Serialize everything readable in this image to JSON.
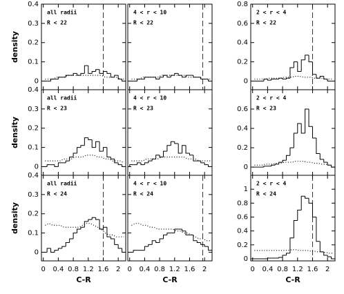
{
  "chart_data": [
    {
      "type": "histogram",
      "lines": [
        "all radii",
        "R < 22"
      ],
      "ylabel": "density",
      "xtick_labels": false,
      "bins": [
        0,
        0.1,
        0.2,
        0.3,
        0.4,
        0.5,
        0.6,
        0.7,
        0.8,
        0.9,
        1,
        1.1,
        1.2,
        1.3,
        1.4,
        1.5,
        1.6,
        1.7,
        1.8,
        1.9,
        2,
        2.1,
        2.2
      ],
      "values": [
        0,
        0,
        0.01,
        0.01,
        0.02,
        0.02,
        0.03,
        0.03,
        0.04,
        0.03,
        0.04,
        0.08,
        0.04,
        0.05,
        0.06,
        0.04,
        0.05,
        0.04,
        0.02,
        0.03,
        0.01,
        0
      ],
      "reference": [
        0.01,
        0.01,
        0.01,
        0.02,
        0.02,
        0.02,
        0.03,
        0.03,
        0.03,
        0.03,
        0.03,
        0.03,
        0.03,
        0.03,
        0.03,
        0.03,
        0.02,
        0.02,
        0.02,
        0.02,
        0.01,
        0.01
      ],
      "xlim": [
        -0.05,
        2.2
      ],
      "ylim": [
        -0.045,
        0.4
      ],
      "xticks": [
        0,
        0.4,
        0.8,
        1.2,
        1.6,
        2
      ],
      "yticks": [
        0,
        0.1,
        0.2,
        0.3,
        0.4
      ],
      "vline": 1.6
    },
    {
      "type": "histogram",
      "lines": [
        "4 < r < 10",
        "R < 22"
      ],
      "xtick_labels": false,
      "ytick_labels": false,
      "bins": [
        0,
        0.1,
        0.2,
        0.3,
        0.4,
        0.5,
        0.6,
        0.7,
        0.8,
        0.9,
        1,
        1.1,
        1.2,
        1.3,
        1.4,
        1.5,
        1.6,
        1.7,
        1.8,
        1.9,
        2,
        2.1,
        2.2
      ],
      "values": [
        0,
        0,
        0.01,
        0.01,
        0.02,
        0.02,
        0.02,
        0.01,
        0.02,
        0.03,
        0.02,
        0.03,
        0.04,
        0.03,
        0.02,
        0.03,
        0.03,
        0.02,
        0.02,
        0.01,
        0.01,
        0
      ],
      "reference": [
        0.01,
        0.01,
        0.01,
        0.02,
        0.02,
        0.02,
        0.02,
        0.02,
        0.03,
        0.03,
        0.03,
        0.03,
        0.03,
        0.03,
        0.03,
        0.02,
        0.02,
        0.02,
        0.02,
        0.01,
        0.01,
        0.01
      ],
      "xlim": [
        -0.05,
        2.2
      ],
      "ylim": [
        -0.045,
        0.4
      ],
      "xticks": [
        0,
        0.4,
        0.8,
        1.2,
        1.6,
        2
      ],
      "yticks": [
        0,
        0.1,
        0.2,
        0.3,
        0.4
      ],
      "vline": 1.95
    },
    {
      "type": "histogram",
      "lines": [
        "2 < r < 4",
        "R < 22"
      ],
      "xtick_labels": false,
      "bins": [
        0,
        0.1,
        0.2,
        0.3,
        0.4,
        0.5,
        0.6,
        0.7,
        0.8,
        0.9,
        1,
        1.1,
        1.2,
        1.3,
        1.4,
        1.5,
        1.6,
        1.7,
        1.8,
        1.9,
        2,
        2.1,
        2.2
      ],
      "values": [
        0,
        0,
        0,
        0.02,
        0.01,
        0.02,
        0.02,
        0.03,
        0.02,
        0.03,
        0.14,
        0.2,
        0.1,
        0.22,
        0.27,
        0.2,
        0.07,
        0.03,
        0.05,
        0.02,
        0,
        0
      ],
      "reference": [
        0.02,
        0.02,
        0.02,
        0.02,
        0.03,
        0.03,
        0.03,
        0.03,
        0.04,
        0.04,
        0.04,
        0.05,
        0.05,
        0.04,
        0.04,
        0.04,
        0.03,
        0.03,
        0.03,
        0.02,
        0.02,
        0.02
      ],
      "xlim": [
        -0.05,
        2.2
      ],
      "ylim": [
        -0.09,
        0.8
      ],
      "xticks": [
        0,
        0.4,
        0.8,
        1.2,
        1.6,
        2
      ],
      "yticks": [
        0,
        0.2,
        0.4,
        0.6,
        0.8
      ],
      "vline": 1.6
    },
    {
      "type": "histogram",
      "lines": [
        "all radii",
        "R < 23"
      ],
      "ylabel": "density",
      "xtick_labels": false,
      "bins": [
        0,
        0.1,
        0.2,
        0.3,
        0.4,
        0.5,
        0.6,
        0.7,
        0.8,
        0.9,
        1,
        1.1,
        1.2,
        1.3,
        1.4,
        1.5,
        1.6,
        1.7,
        1.8,
        1.9,
        2,
        2.1,
        2.2
      ],
      "values": [
        0,
        0.01,
        0.01,
        0,
        0.02,
        0.02,
        0.03,
        0.05,
        0.07,
        0.1,
        0.11,
        0.15,
        0.14,
        0.1,
        0.13,
        0.08,
        0.1,
        0.05,
        0.04,
        0.02,
        0.01,
        0
      ],
      "reference": [
        0.03,
        0.03,
        0.03,
        0.03,
        0.03,
        0.04,
        0.04,
        0.04,
        0.05,
        0.05,
        0.05,
        0.06,
        0.06,
        0.06,
        0.05,
        0.05,
        0.04,
        0.04,
        0.03,
        0.03,
        0.03,
        0.02
      ],
      "xlim": [
        -0.05,
        2.2
      ],
      "ylim": [
        -0.045,
        0.4
      ],
      "xticks": [
        0,
        0.4,
        0.8,
        1.2,
        1.6,
        2
      ],
      "yticks": [
        0,
        0.1,
        0.2,
        0.3,
        0.4
      ]
    },
    {
      "type": "histogram",
      "lines": [
        "4 < r < 10",
        "R < 23"
      ],
      "xtick_labels": false,
      "ytick_labels": false,
      "bins": [
        0,
        0.1,
        0.2,
        0.3,
        0.4,
        0.5,
        0.6,
        0.7,
        0.8,
        0.9,
        1,
        1.1,
        1.2,
        1.3,
        1.4,
        1.5,
        1.6,
        1.7,
        1.8,
        1.9,
        2,
        2.1,
        2.2
      ],
      "values": [
        0.01,
        0.01,
        0.02,
        0.01,
        0.02,
        0.03,
        0.04,
        0.06,
        0.05,
        0.08,
        0.11,
        0.13,
        0.12,
        0.07,
        0.11,
        0.07,
        0.06,
        0.03,
        0.03,
        0.02,
        0.01,
        0
      ],
      "reference": [
        0.03,
        0.03,
        0.03,
        0.03,
        0.04,
        0.04,
        0.04,
        0.04,
        0.05,
        0.05,
        0.05,
        0.05,
        0.05,
        0.05,
        0.05,
        0.04,
        0.04,
        0.04,
        0.03,
        0.03,
        0.03,
        0.03
      ],
      "xlim": [
        -0.05,
        2.2
      ],
      "ylim": [
        -0.045,
        0.4
      ],
      "xticks": [
        0,
        0.4,
        0.8,
        1.2,
        1.6,
        2
      ],
      "yticks": [
        0,
        0.1,
        0.2,
        0.3,
        0.4
      ]
    },
    {
      "type": "histogram",
      "lines": [
        "2 < r < 4",
        "R < 23"
      ],
      "xtick_labels": false,
      "bins": [
        0,
        0.1,
        0.2,
        0.3,
        0.4,
        0.5,
        0.6,
        0.7,
        0.8,
        0.9,
        1,
        1.1,
        1.2,
        1.3,
        1.4,
        1.5,
        1.6,
        1.7,
        1.8,
        1.9,
        2,
        2.1,
        2.2
      ],
      "values": [
        0,
        0,
        0,
        0.01,
        0.01,
        0.02,
        0.03,
        0.05,
        0.07,
        0.12,
        0.2,
        0.35,
        0.45,
        0.35,
        0.6,
        0.42,
        0.3,
        0.14,
        0.08,
        0.05,
        0.02,
        0
      ],
      "reference": [
        0.02,
        0.02,
        0.02,
        0.03,
        0.03,
        0.03,
        0.04,
        0.04,
        0.05,
        0.05,
        0.05,
        0.06,
        0.06,
        0.06,
        0.05,
        0.05,
        0.04,
        0.04,
        0.03,
        0.03,
        0.02,
        0.02
      ],
      "xlim": [
        -0.05,
        2.2
      ],
      "ylim": [
        -0.085,
        0.8
      ],
      "xticks": [
        0,
        0.4,
        0.8,
        1.2,
        1.6,
        2
      ],
      "yticks": [
        0,
        0.2,
        0.4,
        0.6
      ]
    },
    {
      "type": "histogram",
      "lines": [
        "all radii",
        "R < 24"
      ],
      "ylabel": "density",
      "xlabel": "C-R",
      "bins": [
        0,
        0.1,
        0.2,
        0.3,
        0.4,
        0.5,
        0.6,
        0.7,
        0.8,
        0.9,
        1,
        1.1,
        1.2,
        1.3,
        1.4,
        1.5,
        1.6,
        1.7,
        1.8,
        1.9,
        2,
        2.1,
        2.2
      ],
      "values": [
        0,
        0.02,
        0,
        0.01,
        0.02,
        0.03,
        0.05,
        0.07,
        0.1,
        0.12,
        0.13,
        0.16,
        0.17,
        0.18,
        0.17,
        0.12,
        0.13,
        0.08,
        0.07,
        0.04,
        0.02,
        0
      ],
      "reference": [
        0.14,
        0.15,
        0.14,
        0.14,
        0.14,
        0.13,
        0.13,
        0.13,
        0.13,
        0.13,
        0.14,
        0.15,
        0.15,
        0.14,
        0.13,
        0.12,
        0.1,
        0.09,
        0.09,
        0.08,
        0.08,
        0.08
      ],
      "xlim": [
        -0.05,
        2.2
      ],
      "ylim": [
        -0.045,
        0.4
      ],
      "xticks": [
        0,
        0.4,
        0.8,
        1.2,
        1.6,
        2
      ],
      "yticks": [
        0,
        0.1,
        0.2,
        0.3,
        0.4
      ],
      "vline": 1.6
    },
    {
      "type": "histogram",
      "lines": [
        "4 < r < 10",
        "R < 24"
      ],
      "xlabel": "C-R",
      "ytick_labels": false,
      "bins": [
        0,
        0.1,
        0.2,
        0.3,
        0.4,
        0.5,
        0.6,
        0.7,
        0.8,
        0.9,
        1,
        1.1,
        1.2,
        1.3,
        1.4,
        1.5,
        1.6,
        1.7,
        1.8,
        1.9,
        2,
        2.1,
        2.2
      ],
      "values": [
        0,
        0.01,
        0.01,
        0.01,
        0.03,
        0.04,
        0.06,
        0.05,
        0.07,
        0.09,
        0.1,
        0.1,
        0.12,
        0.12,
        0.11,
        0.09,
        0.09,
        0.06,
        0.05,
        0.04,
        0.03,
        0.01
      ],
      "reference": [
        0.14,
        0.15,
        0.15,
        0.14,
        0.14,
        0.13,
        0.13,
        0.12,
        0.12,
        0.12,
        0.12,
        0.12,
        0.11,
        0.11,
        0.1,
        0.1,
        0.09,
        0.08,
        0.07,
        0.07,
        0.06,
        0.06
      ],
      "xlim": [
        -0.05,
        2.2
      ],
      "ylim": [
        -0.045,
        0.4
      ],
      "xticks": [
        0,
        0.4,
        0.8,
        1.2,
        1.6,
        2
      ],
      "yticks": [
        0,
        0.1,
        0.2,
        0.3,
        0.4
      ],
      "vline": 1.95
    },
    {
      "type": "histogram",
      "lines": [
        "2 < r < 4",
        "R < 24"
      ],
      "xlabel": "C-R",
      "bins": [
        0,
        0.1,
        0.2,
        0.3,
        0.4,
        0.5,
        0.6,
        0.7,
        0.8,
        0.9,
        1,
        1.1,
        1.2,
        1.3,
        1.4,
        1.5,
        1.6,
        1.7,
        1.8,
        1.9,
        2,
        2.1,
        2.2
      ],
      "values": [
        0,
        0,
        0,
        0,
        0.01,
        0.01,
        0.01,
        0.02,
        0.05,
        0.08,
        0.3,
        0.55,
        0.7,
        0.9,
        0.87,
        0.8,
        0.6,
        0.25,
        0.1,
        0.05,
        0.03,
        0
      ],
      "reference": [
        0.12,
        0.12,
        0.12,
        0.12,
        0.12,
        0.12,
        0.12,
        0.12,
        0.12,
        0.12,
        0.13,
        0.13,
        0.12,
        0.12,
        0.12,
        0.11,
        0.11,
        0.1,
        0.1,
        0.09,
        0.08,
        0.08
      ],
      "xlim": [
        -0.05,
        2.2
      ],
      "ylim": [
        -0.03,
        1.2
      ],
      "xticks": [
        0,
        0.4,
        0.8,
        1.2,
        1.6,
        2
      ],
      "yticks": [
        0,
        0.2,
        0.4,
        0.6,
        0.8,
        1
      ],
      "vline": 1.6
    }
  ]
}
